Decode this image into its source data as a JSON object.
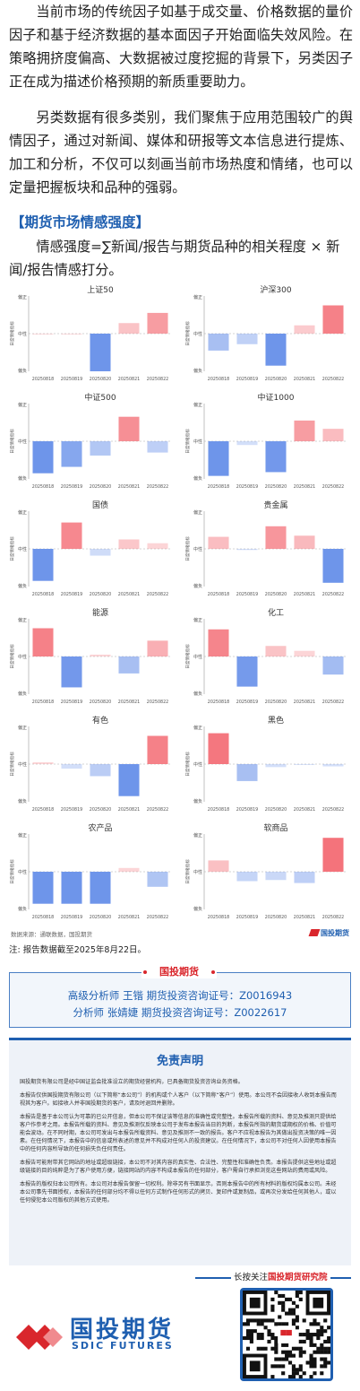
{
  "intro": {
    "para1": "当前市场的传统因子如基于成交量、价格数据的量价因子和基于经济数据的基本面因子开始面临失效风险。在策略拥挤度偏高、大数据被过度挖掘的背景下，另类因子正在成为描述价格预期的新质重要助力。",
    "para2": "另类数据有很多类别，我们聚焦于应用范围较广的舆情因子，通过对新闻、媒体和研报等文本信息进行提炼、加工和分析，不仅可以刻画当前市场热度和情绪，也可以定量把握板块和品种的强弱。"
  },
  "section_title": "【期货市场情感强度】",
  "formula": "情感强度=∑新闻/报告与期货品种的相关程度 × 新闻/报告情感打分。",
  "chart_axis": {
    "ylabel": "日度情绪指标",
    "top_label": "偏正",
    "mid_label": "中性",
    "bottom_label": "偏负"
  },
  "colors": {
    "positive": "#f4737b",
    "negative": "#6e95ea",
    "accent": "#1f5fb0",
    "brand_red": "#d9262c"
  },
  "chart_data": [
    {
      "type": "bar",
      "title": "上证50",
      "categories": [
        "20250818",
        "20250819",
        "20250820",
        "20250821",
        "20250822"
      ],
      "values": [
        0.0,
        0.0,
        -1.0,
        0.28,
        0.55
      ],
      "ylim": [
        -1,
        1
      ]
    },
    {
      "type": "bar",
      "title": "沪深300",
      "categories": [
        "20250818",
        "20250819",
        "20250820",
        "20250821",
        "20250822"
      ],
      "values": [
        -0.45,
        -0.28,
        -0.85,
        0.22,
        0.75
      ],
      "ylim": [
        -1,
        1
      ]
    },
    {
      "type": "bar",
      "title": "中证500",
      "categories": [
        "20250818",
        "20250819",
        "20250820",
        "20250821",
        "20250822"
      ],
      "values": [
        -0.85,
        -0.68,
        -0.38,
        0.65,
        -0.3
      ],
      "ylim": [
        -1,
        1
      ]
    },
    {
      "type": "bar",
      "title": "中证1000",
      "categories": [
        "20250818",
        "20250819",
        "20250820",
        "20250821",
        "20250822"
      ],
      "values": [
        -0.92,
        -0.1,
        -0.82,
        0.55,
        0.33
      ],
      "ylim": [
        -1,
        1
      ]
    },
    {
      "type": "bar",
      "title": "国债",
      "categories": [
        "20250818",
        "20250819",
        "20250820",
        "20250821",
        "20250822"
      ],
      "values": [
        -0.85,
        0.7,
        -0.18,
        0.25,
        0.15
      ],
      "ylim": [
        -1,
        1
      ]
    },
    {
      "type": "bar",
      "title": "贵金属",
      "categories": [
        "20250818",
        "20250819",
        "20250820",
        "20250821",
        "20250822"
      ],
      "values": [
        0.32,
        -0.03,
        0.6,
        0.35,
        -0.9
      ],
      "ylim": [
        -1,
        1
      ]
    },
    {
      "type": "bar",
      "title": "能源",
      "categories": [
        "20250818",
        "20250819",
        "20250820",
        "20250821",
        "20250822"
      ],
      "values": [
        0.75,
        -0.82,
        0.05,
        -0.45,
        0.42
      ],
      "ylim": [
        -1,
        1
      ]
    },
    {
      "type": "bar",
      "title": "化工",
      "categories": [
        "20250818",
        "20250819",
        "20250820",
        "20250821",
        "20250822"
      ],
      "values": [
        0.72,
        -0.8,
        0.28,
        0.15,
        -0.48
      ],
      "ylim": [
        -1,
        1
      ]
    },
    {
      "type": "bar",
      "title": "有色",
      "categories": [
        "20250818",
        "20250819",
        "20250820",
        "20250821",
        "20250822"
      ],
      "values": [
        0.05,
        -0.12,
        -0.32,
        -0.85,
        0.75
      ],
      "ylim": [
        -1,
        1
      ]
    },
    {
      "type": "bar",
      "title": "黑色",
      "categories": [
        "20250818",
        "20250819",
        "20250820",
        "20250821",
        "20250822"
      ],
      "values": [
        0.82,
        -0.45,
        -0.08,
        -0.02,
        -0.06
      ],
      "ylim": [
        -1,
        1
      ]
    },
    {
      "type": "bar",
      "title": "农产品",
      "categories": [
        "20250818",
        "20250819",
        "20250820",
        "20250821",
        "20250822"
      ],
      "values": [
        -0.85,
        -0.85,
        -0.85,
        0.1,
        -0.4
      ],
      "ylim": [
        -1,
        1
      ]
    },
    {
      "type": "bar",
      "title": "软商品",
      "categories": [
        "20250818",
        "20250819",
        "20250820",
        "20250821",
        "20250822"
      ],
      "values": [
        0.3,
        -0.25,
        -0.22,
        -0.3,
        0.9
      ],
      "ylim": [
        -1,
        1
      ]
    }
  ],
  "source": {
    "text": "数据来源：通联数据，国投期货",
    "logo": "国投期货"
  },
  "note": "注: 报告数据截至2025年8月22日。",
  "analyst_box": {
    "brand": "国投期货",
    "line1": "高级分析师  王锴  期货投资咨询证号：Z0016943",
    "line2": "分析师  张婧婕  期货投资咨询证号：Z0022617"
  },
  "disclaimer": {
    "title": "免责声明",
    "paragraphs": [
      "国投期货有限公司是经中国证监会批准设立的期货经营机构，已具备期货投资咨询业务资格。",
      "本报告仅供国投期货有限公司（以下简称“本公司”）的机构或个人客户（以下简称“客户”）使用。本公司不会因接收人收到本报告而视其为客户。如接收人并非国投期货的客户，请及时退回并删除。",
      "本报告是基于本公司认为可靠的已公开信息，但本公司不保证该等信息的准确性或完整性。本报告所载的资料、意见及推测只提供给客户作参考之用。本报告所载的资料、意见及推测仅反映本公司于发布本报告当日的判断，本报告所指的期货或期权的价格、价值可能会波动。在不同时期，本公司可发出与本报告所载资料、意见及推测不一致的报告。客户不应视本报告为其做出投资决策的唯一因素。在任何情况下，本报告中的信息或所表述的意见并不构成对任何人的投资建议。在任何情况下，本公司不对任何人因使用本报告中的任何内容所导致的任何损失负任何责任。",
      "本报告可能附带其它网站的地址或超级链接，本公司不对其内容的真实性、合法性、完整性和准确性负责。本报告提供这些地址或超级链接的目的纯粹是为了客户使用方便，链接网站的内容不构成本报告的任何部分，客户需自行承担浏览这些网站的费用或风险。",
      "本报告的版权归本公司所有。本公司对本报告保留一切权利。除非另有书面显示，否则本报告中的所有材料的版权均属本公司。未经本公司事先书面授权，本报告的任何部分均不得以任何方式制作任何形式的拷贝、复印件或复制品，或再次分发给任何其他人，或以任何侵犯本公司版权的其他方式使用。"
    ]
  },
  "footer": {
    "logo_text": "国投期货",
    "logo_sub": "SDIC FUTURES",
    "follow_prefix": "长按关注",
    "follow_highlight": "国投期货研究院"
  }
}
